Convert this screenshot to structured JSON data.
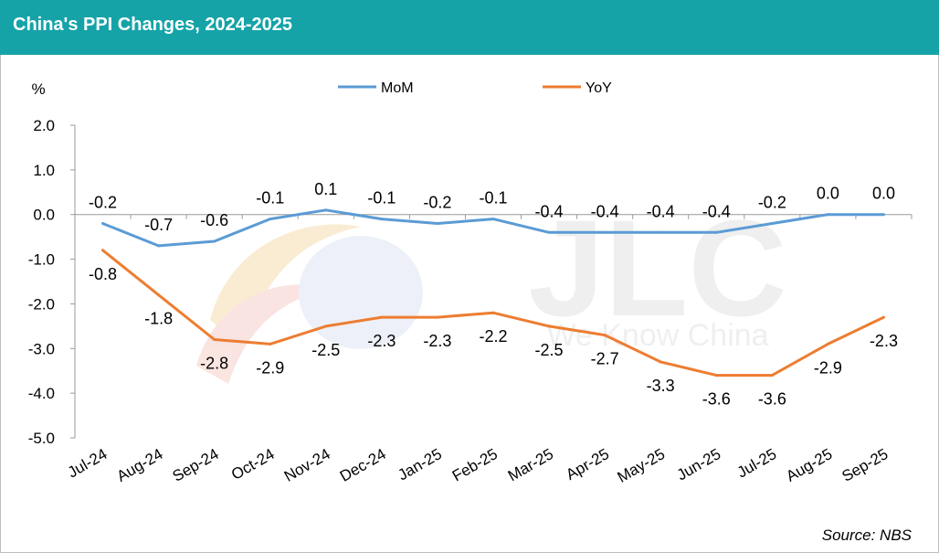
{
  "header": {
    "title": "China's PPI Changes, 2024-2025"
  },
  "footer": {
    "source": "Source: NBS"
  },
  "watermark": {
    "text": "JLC",
    "tagline": "We Know China"
  },
  "chart_data": {
    "type": "line",
    "title": "China's PPI Changes, 2024-2025",
    "ylabel": "%",
    "xlabel": "",
    "ylim": [
      -5.0,
      2.0
    ],
    "yticks": [
      "2.0",
      "1.0",
      "0.0",
      "-1.0",
      "-2.0",
      "-3.0",
      "-4.0",
      "-5.0"
    ],
    "ytick_values": [
      2,
      1,
      0,
      -1,
      -2,
      -3,
      -4,
      -5
    ],
    "grid": false,
    "legend_position": "top-center",
    "categories": [
      "Jul-24",
      "Aug-24",
      "Sep-24",
      "Oct-24",
      "Nov-24",
      "Dec-24",
      "Jan-25",
      "Feb-25",
      "Mar-25",
      "Apr-25",
      "May-25",
      "Jun-25",
      "Jul-25",
      "Aug-25",
      "Sep-25"
    ],
    "series": [
      {
        "name": "MoM",
        "color": "#5b9bd5",
        "values": [
          -0.2,
          -0.7,
          -0.6,
          -0.1,
          0.1,
          -0.1,
          -0.2,
          -0.1,
          -0.4,
          -0.4,
          -0.4,
          -0.4,
          -0.2,
          0.0,
          0.0
        ],
        "labels": [
          "-0.2",
          "-0.7",
          "-0.6",
          "-0.1",
          "0.1",
          "-0.1",
          "-0.2",
          "-0.1",
          "-0.4",
          "-0.4",
          "-0.4",
          "-0.4",
          "-0.2",
          "0.0",
          "0.0"
        ]
      },
      {
        "name": "YoY",
        "color": "#ed7d31",
        "values": [
          -0.8,
          -1.8,
          -2.8,
          -2.9,
          -2.5,
          -2.3,
          -2.3,
          -2.2,
          -2.5,
          -2.7,
          -3.3,
          -3.6,
          -3.6,
          -2.9,
          -2.3
        ],
        "labels": [
          "-0.8",
          "-1.8",
          "-2.8",
          "-2.9",
          "-2.5",
          "-2.3",
          "-2.3",
          "-2.2",
          "-2.5",
          "-2.7",
          "-3.3",
          "-3.6",
          "-3.6",
          "-2.9",
          "-2.3"
        ]
      }
    ]
  }
}
